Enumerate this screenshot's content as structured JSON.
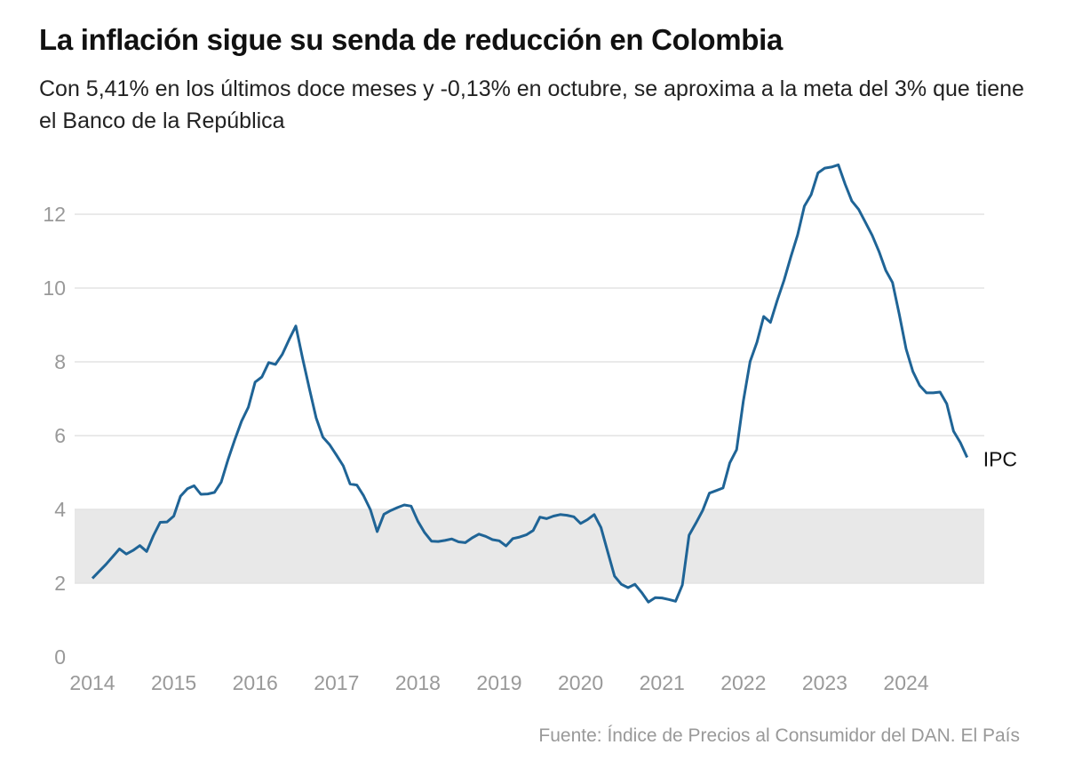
{
  "title": "La inflación sigue su senda de reducción en Colombia",
  "subtitle": "Con 5,41% en los últimos doce meses y -0,13% en octubre, se aproxima a la meta del 3% que tiene el Banco de la República",
  "source": "Fuente: Índice de Precios al Consumidor del DAN. El País",
  "chart_data": {
    "type": "line",
    "title": "La inflación sigue su senda de reducción en Colombia",
    "xlabel": "",
    "ylabel": "",
    "ylim": [
      0,
      13.5
    ],
    "xlim": [
      "2014-01",
      "2024-10"
    ],
    "yticks": [
      "0",
      "2",
      "4",
      "6",
      "8",
      "10",
      "12"
    ],
    "xticks": [
      "2014",
      "2015",
      "2016",
      "2017",
      "2018",
      "2019",
      "2020",
      "2021",
      "2022",
      "2023",
      "2024"
    ],
    "grid": true,
    "target_band": [
      2,
      4
    ],
    "colors": {
      "line": "#1f6496",
      "band": "#e8e8e8",
      "grid": "#e3e3e3"
    },
    "series": [
      {
        "name": "IPC",
        "start": "2014-01",
        "frequency": "monthly",
        "values": [
          2.13,
          2.32,
          2.51,
          2.72,
          2.93,
          2.79,
          2.89,
          3.02,
          2.86,
          3.29,
          3.65,
          3.66,
          3.82,
          4.36,
          4.56,
          4.64,
          4.41,
          4.42,
          4.46,
          4.74,
          5.35,
          5.89,
          6.39,
          6.77,
          7.45,
          7.59,
          7.98,
          7.93,
          8.2,
          8.6,
          8.97,
          8.1,
          7.27,
          6.48,
          5.96,
          5.75,
          5.47,
          5.18,
          4.69,
          4.66,
          4.37,
          3.99,
          3.4,
          3.87,
          3.97,
          4.05,
          4.12,
          4.09,
          3.68,
          3.37,
          3.14,
          3.13,
          3.16,
          3.2,
          3.12,
          3.1,
          3.23,
          3.33,
          3.27,
          3.18,
          3.15,
          3.01,
          3.21,
          3.25,
          3.31,
          3.43,
          3.79,
          3.75,
          3.82,
          3.86,
          3.84,
          3.8,
          3.62,
          3.72,
          3.86,
          3.51,
          2.85,
          2.19,
          1.97,
          1.88,
          1.97,
          1.75,
          1.49,
          1.61,
          1.6,
          1.56,
          1.51,
          1.95,
          3.3,
          3.63,
          3.97,
          4.44,
          4.51,
          4.58,
          5.26,
          5.62,
          6.94,
          8.01,
          8.53,
          9.23,
          9.07,
          9.67,
          10.21,
          10.84,
          11.44,
          12.22,
          12.53,
          13.12,
          13.25,
          13.28,
          13.34,
          12.82,
          12.36,
          12.13,
          11.78,
          11.43,
          10.99,
          10.48,
          10.15,
          9.28,
          8.35,
          7.74,
          7.36,
          7.16,
          7.16,
          7.18,
          6.86,
          6.12,
          5.81,
          5.41
        ]
      }
    ]
  }
}
